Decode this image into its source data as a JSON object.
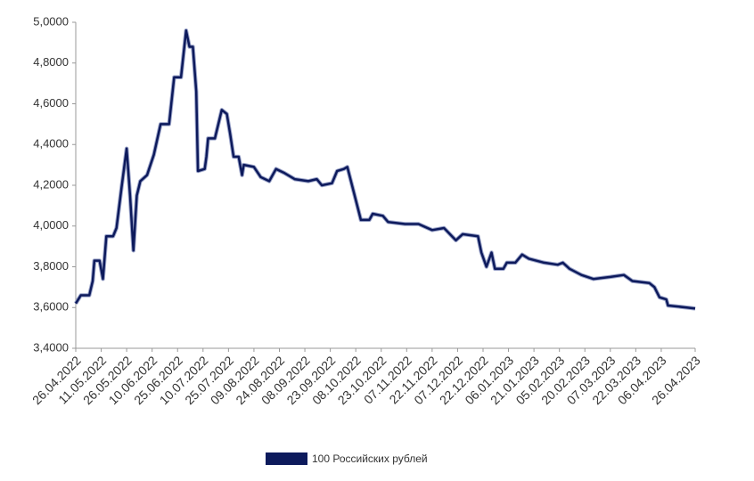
{
  "chart_data": {
    "type": "line",
    "x": [
      "26.04.2022",
      "29.04.2022",
      "04.05.2022",
      "06.05.2022",
      "07.05.2022",
      "10.05.2022",
      "12.05.2022",
      "14.05.2022",
      "18.05.2022",
      "20.05.2022",
      "23.05.2022",
      "26.05.2022",
      "28.05.2022",
      "30.05.2022",
      "01.06.2022",
      "03.06.2022",
      "07.06.2022",
      "11.06.2022",
      "15.06.2022",
      "20.06.2022",
      "23.06.2022",
      "27.06.2022",
      "30.06.2022",
      "02.07.2022",
      "04.07.2022",
      "06.07.2022",
      "07.07.2022",
      "11.07.2022",
      "12.07.2022",
      "13.07.2022",
      "17.07.2022",
      "21.07.2022",
      "24.07.2022",
      "26.07.2022",
      "28.07.2022",
      "31.07.2022",
      "02.08.2022",
      "03.08.2022",
      "09.08.2022",
      "13.08.2022",
      "18.08.2022",
      "22.08.2022",
      "27.08.2022",
      "02.09.2022",
      "10.09.2022",
      "15.09.2022",
      "18.09.2022",
      "24.09.2022",
      "27.09.2022",
      "01.10.2022",
      "03.10.2022",
      "07.10.2022",
      "11.10.2022",
      "16.10.2022",
      "18.10.2022",
      "24.10.2022",
      "27.10.2022",
      "06.11.2022",
      "14.11.2022",
      "22.11.2022",
      "29.11.2022",
      "06.12.2022",
      "10.12.2022",
      "19.12.2022",
      "21.12.2022",
      "24.12.2022",
      "27.12.2022",
      "29.12.2022",
      "03.01.2023",
      "05.01.2023",
      "10.01.2023",
      "14.01.2023",
      "18.01.2023",
      "27.01.2023",
      "04.02.2023",
      "07.02.2023",
      "11.02.2023",
      "18.02.2023",
      "25.02.2023",
      "07.03.2023",
      "15.03.2023",
      "20.03.2023",
      "30.03.2023",
      "02.04.2023",
      "05.04.2023",
      "09.04.2023",
      "10.04.2023",
      "21.04.2023",
      "26.04.2023"
    ],
    "series": [
      {
        "name": "100 Российских рублей",
        "color": "#0d1a5c",
        "values": [
          3.62,
          3.66,
          3.66,
          3.73,
          3.83,
          3.83,
          3.74,
          3.95,
          3.95,
          3.99,
          4.19,
          4.38,
          4.15,
          3.88,
          4.15,
          4.22,
          4.25,
          4.35,
          4.5,
          4.5,
          4.73,
          4.73,
          4.96,
          4.88,
          4.88,
          4.66,
          4.27,
          4.28,
          4.34,
          4.43,
          4.43,
          4.57,
          4.55,
          4.45,
          4.34,
          4.34,
          4.25,
          4.3,
          4.29,
          4.24,
          4.22,
          4.28,
          4.26,
          4.23,
          4.22,
          4.23,
          4.2,
          4.21,
          4.27,
          4.28,
          4.29,
          4.16,
          4.03,
          4.03,
          4.06,
          4.05,
          4.02,
          4.01,
          4.01,
          3.98,
          3.99,
          3.93,
          3.96,
          3.95,
          3.87,
          3.8,
          3.87,
          3.79,
          3.79,
          3.82,
          3.82,
          3.86,
          3.84,
          3.82,
          3.81,
          3.82,
          3.79,
          3.76,
          3.74,
          3.75,
          3.76,
          3.73,
          3.72,
          3.7,
          3.65,
          3.64,
          3.61,
          3.6,
          3.595
        ]
      }
    ],
    "xticks": [
      "26.04.2022",
      "11.05.2022",
      "26.05.2022",
      "10.06.2022",
      "25.06.2022",
      "10.07.2022",
      "25.07.2022",
      "09.08.2022",
      "24.08.2022",
      "08.09.2022",
      "23.09.2022",
      "08.10.2022",
      "23.10.2022",
      "07.11.2022",
      "22.11.2022",
      "07.12.2022",
      "22.12.2022",
      "06.01.2023",
      "21.01.2023",
      "05.02.2023",
      "20.02.2023",
      "07.03.2023",
      "22.03.2023",
      "06.04.2023",
      "26.04.2023"
    ],
    "ylim": [
      3.4,
      5.0
    ],
    "yticks": [
      {
        "value": 3.4,
        "label": "3,4000"
      },
      {
        "value": 3.6,
        "label": "3,6000"
      },
      {
        "value": 3.8,
        "label": "3,8000"
      },
      {
        "value": 4.0,
        "label": "4,0000"
      },
      {
        "value": 4.2,
        "label": "4,2000"
      },
      {
        "value": 4.4,
        "label": "4,4000"
      },
      {
        "value": 4.6,
        "label": "4,6000"
      },
      {
        "value": 4.8,
        "label": "4,8000"
      },
      {
        "value": 5.0,
        "label": "5,0000"
      }
    ],
    "legend": "bottom"
  }
}
